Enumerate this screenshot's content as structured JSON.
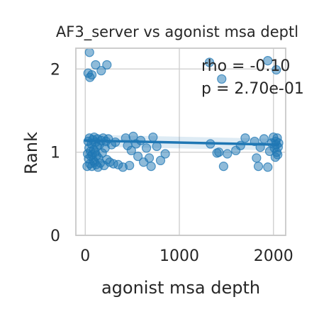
{
  "chart_data": {
    "type": "scatter",
    "title": "AF3_server vs agonist msa deptl",
    "xlabel": "agonist msa depth",
    "ylabel": "Rank",
    "xlim": [
      -100,
      2130
    ],
    "ylim": [
      0,
      2.25
    ],
    "xticks": [
      {
        "v": 0,
        "label": "0"
      },
      {
        "v": 1000,
        "label": "1000"
      },
      {
        "v": 2000,
        "label": "2000"
      }
    ],
    "yticks": [
      {
        "v": 0,
        "label": "0"
      },
      {
        "v": 1,
        "label": "1"
      },
      {
        "v": 2,
        "label": "2"
      }
    ],
    "grid": true,
    "annotations": [
      "rho = -0.10",
      "p = 2.70e-01"
    ],
    "colors": {
      "points": "#1f77b4",
      "line": "#1f77b4",
      "band": "#1f77b4",
      "grid": "#d0d0d0",
      "spine": "#c8c8c8"
    },
    "regression": {
      "x": [
        0,
        2050
      ],
      "y": [
        1.14,
        1.09
      ],
      "band_halfwidth": 0.07
    },
    "points": [
      {
        "x": 30,
        "y": 1.95
      },
      {
        "x": 45,
        "y": 2.2
      },
      {
        "x": 50,
        "y": 1.9
      },
      {
        "x": 70,
        "y": 1.93
      },
      {
        "x": 110,
        "y": 2.05
      },
      {
        "x": 170,
        "y": 1.98
      },
      {
        "x": 230,
        "y": 2.05
      },
      {
        "x": 1320,
        "y": 2.08
      },
      {
        "x": 1450,
        "y": 1.88
      },
      {
        "x": 1940,
        "y": 2.1
      },
      {
        "x": 2030,
        "y": 1.99
      },
      {
        "x": 20,
        "y": 0.83
      },
      {
        "x": 25,
        "y": 0.98
      },
      {
        "x": 30,
        "y": 1.13
      },
      {
        "x": 35,
        "y": 0.92
      },
      {
        "x": 40,
        "y": 1.05
      },
      {
        "x": 45,
        "y": 1.17
      },
      {
        "x": 50,
        "y": 0.86
      },
      {
        "x": 55,
        "y": 1.01
      },
      {
        "x": 60,
        "y": 0.95
      },
      {
        "x": 65,
        "y": 1.1
      },
      {
        "x": 70,
        "y": 0.83
      },
      {
        "x": 75,
        "y": 0.97
      },
      {
        "x": 80,
        "y": 1.15
      },
      {
        "x": 85,
        "y": 0.9
      },
      {
        "x": 90,
        "y": 1.03
      },
      {
        "x": 95,
        "y": 1.18
      },
      {
        "x": 100,
        "y": 0.88
      },
      {
        "x": 105,
        "y": 1.0
      },
      {
        "x": 110,
        "y": 1.12
      },
      {
        "x": 115,
        "y": 0.85
      },
      {
        "x": 120,
        "y": 0.96
      },
      {
        "x": 125,
        "y": 1.07
      },
      {
        "x": 130,
        "y": 1.16
      },
      {
        "x": 135,
        "y": 0.82
      },
      {
        "x": 140,
        "y": 0.93
      },
      {
        "x": 150,
        "y": 1.09
      },
      {
        "x": 160,
        "y": 0.87
      },
      {
        "x": 170,
        "y": 1.14
      },
      {
        "x": 180,
        "y": 0.99
      },
      {
        "x": 190,
        "y": 1.17
      },
      {
        "x": 200,
        "y": 0.84
      },
      {
        "x": 210,
        "y": 1.05
      },
      {
        "x": 220,
        "y": 1.13
      },
      {
        "x": 230,
        "y": 0.91
      },
      {
        "x": 245,
        "y": 1.16
      },
      {
        "x": 260,
        "y": 0.88
      },
      {
        "x": 280,
        "y": 1.09
      },
      {
        "x": 300,
        "y": 0.86
      },
      {
        "x": 320,
        "y": 1.12
      },
      {
        "x": 350,
        "y": 0.85
      },
      {
        "x": 400,
        "y": 0.82
      },
      {
        "x": 430,
        "y": 1.17
      },
      {
        "x": 450,
        "y": 1.08
      },
      {
        "x": 470,
        "y": 0.84
      },
      {
        "x": 490,
        "y": 1.02
      },
      {
        "x": 510,
        "y": 1.19
      },
      {
        "x": 540,
        "y": 1.1
      },
      {
        "x": 560,
        "y": 0.95
      },
      {
        "x": 590,
        "y": 1.14
      },
      {
        "x": 620,
        "y": 0.88
      },
      {
        "x": 650,
        "y": 1.05
      },
      {
        "x": 680,
        "y": 0.93
      },
      {
        "x": 700,
        "y": 0.83
      },
      {
        "x": 720,
        "y": 1.18
      },
      {
        "x": 760,
        "y": 1.07
      },
      {
        "x": 800,
        "y": 0.9
      },
      {
        "x": 850,
        "y": 0.98
      },
      {
        "x": 1330,
        "y": 1.1
      },
      {
        "x": 1400,
        "y": 0.99
      },
      {
        "x": 1420,
        "y": 1.0
      },
      {
        "x": 1470,
        "y": 0.83
      },
      {
        "x": 1510,
        "y": 0.98
      },
      {
        "x": 1600,
        "y": 1.02
      },
      {
        "x": 1650,
        "y": 1.08
      },
      {
        "x": 1700,
        "y": 1.17
      },
      {
        "x": 1800,
        "y": 1.13
      },
      {
        "x": 1820,
        "y": 0.93
      },
      {
        "x": 1840,
        "y": 0.83
      },
      {
        "x": 1860,
        "y": 1.06
      },
      {
        "x": 1900,
        "y": 1.16
      },
      {
        "x": 1940,
        "y": 0.82
      },
      {
        "x": 1960,
        "y": 1.01
      },
      {
        "x": 1980,
        "y": 1.11
      },
      {
        "x": 2000,
        "y": 1.18
      },
      {
        "x": 2010,
        "y": 1.05
      },
      {
        "x": 2020,
        "y": 0.94
      },
      {
        "x": 2025,
        "y": 1.13
      },
      {
        "x": 2030,
        "y": 1.09
      },
      {
        "x": 2035,
        "y": 1.0
      },
      {
        "x": 2040,
        "y": 1.17
      },
      {
        "x": 2045,
        "y": 0.97
      },
      {
        "x": 2050,
        "y": 1.06
      },
      {
        "x": 2055,
        "y": 1.11
      }
    ]
  }
}
